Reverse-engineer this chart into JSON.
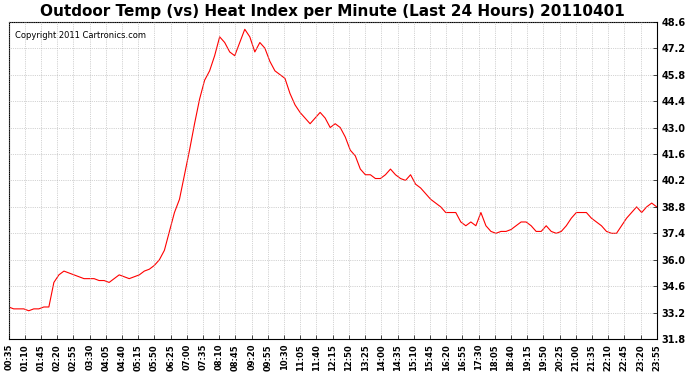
{
  "title": "Outdoor Temp (vs) Heat Index per Minute (Last 24 Hours) 20110401",
  "copyright": "Copyright 2011 Cartronics.com",
  "line_color": "#ff0000",
  "background_color": "#ffffff",
  "grid_color": "#aaaaaa",
  "y_min": 31.8,
  "y_max": 48.6,
  "y_step": 1.4,
  "x_tick_labels": [
    "00:35",
    "01:10",
    "01:45",
    "02:20",
    "02:55",
    "03:30",
    "04:05",
    "04:40",
    "05:15",
    "05:50",
    "06:25",
    "07:00",
    "07:35",
    "08:10",
    "08:45",
    "09:20",
    "09:55",
    "10:30",
    "11:05",
    "11:40",
    "12:15",
    "12:50",
    "13:25",
    "14:00",
    "14:35",
    "15:10",
    "15:45",
    "16:20",
    "16:55",
    "17:30",
    "18:05",
    "18:40",
    "19:15",
    "19:50",
    "20:25",
    "21:00",
    "21:35",
    "22:10",
    "22:45",
    "23:20",
    "23:55"
  ],
  "curve": [
    33.5,
    33.4,
    33.4,
    33.4,
    33.3,
    33.4,
    33.4,
    33.5,
    33.5,
    34.8,
    35.2,
    35.4,
    35.3,
    35.2,
    35.1,
    35.0,
    35.0,
    35.0,
    34.9,
    34.9,
    34.8,
    35.0,
    35.2,
    35.1,
    35.0,
    35.1,
    35.2,
    35.4,
    35.5,
    35.7,
    36.0,
    36.5,
    37.5,
    38.5,
    39.2,
    40.5,
    41.8,
    43.2,
    44.5,
    45.5,
    46.0,
    46.8,
    47.8,
    47.5,
    47.0,
    46.8,
    47.5,
    48.2,
    47.8,
    47.0,
    47.5,
    47.2,
    46.5,
    46.0,
    45.8,
    45.6,
    44.8,
    44.2,
    43.8,
    43.5,
    43.2,
    43.5,
    43.8,
    43.5,
    43.0,
    43.2,
    43.0,
    42.5,
    41.8,
    41.5,
    40.8,
    40.5,
    40.5,
    40.3,
    40.3,
    40.5,
    40.8,
    40.5,
    40.3,
    40.2,
    40.5,
    40.0,
    39.8,
    39.5,
    39.2,
    39.0,
    38.8,
    38.5,
    38.5,
    38.5,
    38.0,
    37.8,
    38.0,
    37.8,
    38.5,
    37.8,
    37.5,
    37.4,
    37.5,
    37.5,
    37.6,
    37.8,
    38.0,
    38.0,
    37.8,
    37.5,
    37.5,
    37.8,
    37.5,
    37.4,
    37.5,
    37.8,
    38.2,
    38.5,
    38.5,
    38.5,
    38.2,
    38.0,
    37.8,
    37.5,
    37.4,
    37.4,
    37.8,
    38.2,
    38.5,
    38.8,
    38.5,
    38.8,
    39.0,
    38.8
  ]
}
